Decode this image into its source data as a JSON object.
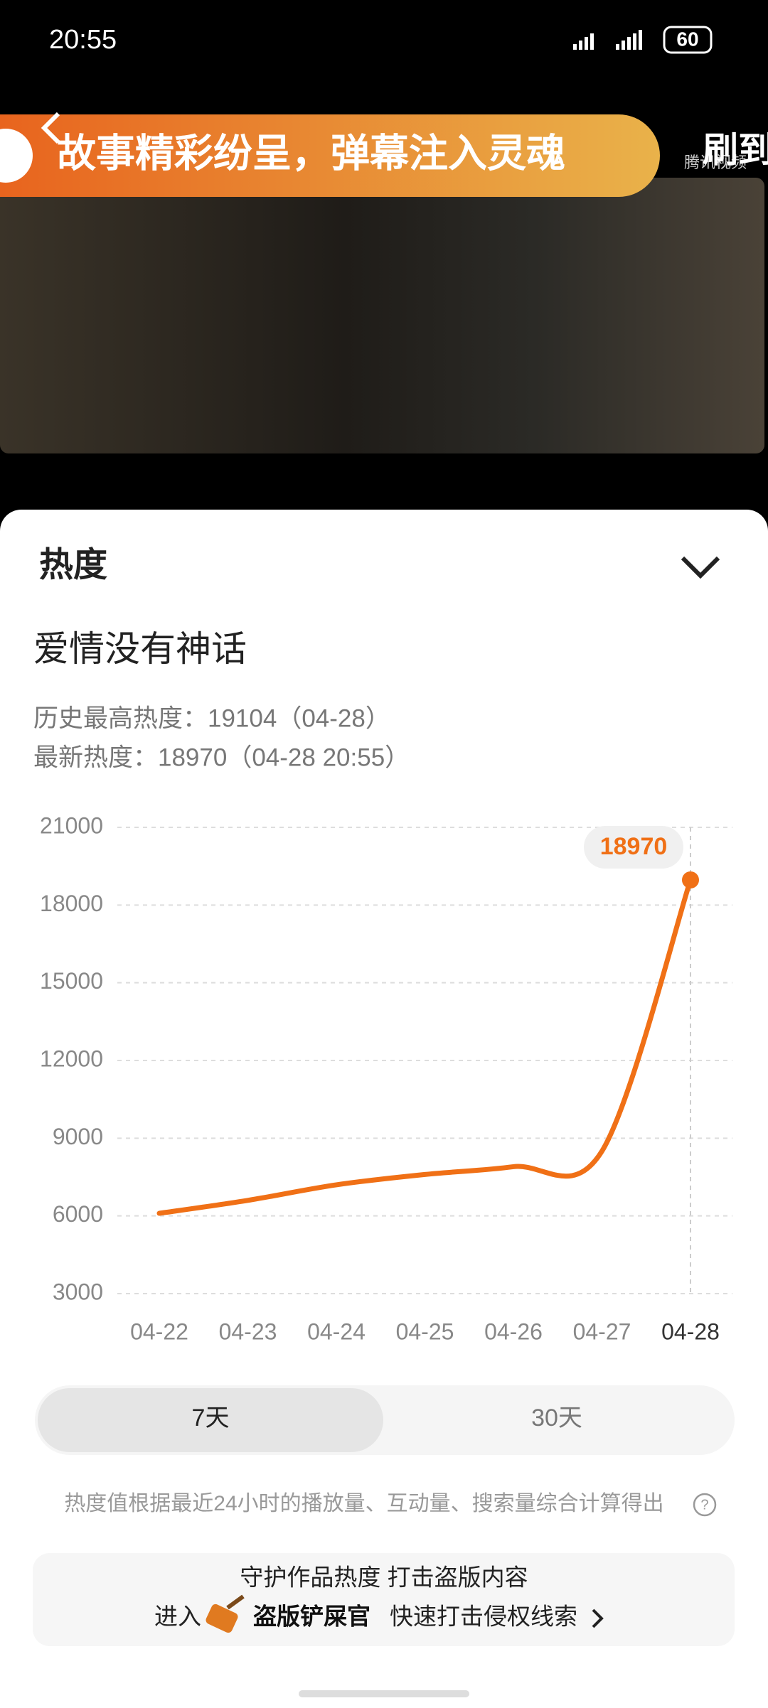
{
  "status_bar": {
    "time": "20:55",
    "battery": "60"
  },
  "video": {
    "banner": "故事精彩纷呈，弹幕注入灵魂",
    "side_text": "刷到",
    "watermark": "腾讯视频"
  },
  "panel": {
    "title": "热度",
    "show_name": "爱情没有神话",
    "history_max": "历史最高热度：19104（04-28）",
    "latest": "最新热度：18970（04-28 20:55）"
  },
  "chart_data": {
    "type": "line",
    "categories": [
      "04-22",
      "04-23",
      "04-24",
      "04-25",
      "04-26",
      "04-27",
      "04-28"
    ],
    "series": [
      {
        "color": "#f07016",
        "values": [
          6100,
          6600,
          7200,
          7600,
          7900,
          8500,
          18970
        ]
      }
    ],
    "ylim": [
      3000,
      21000
    ],
    "yticks": [
      3000,
      6000,
      9000,
      12000,
      15000,
      18000,
      21000
    ],
    "grid": true
  },
  "tabs": [
    "7天",
    "30天"
  ],
  "note": "热度值根据最近24小时的播放量、互动量、搜索量综合计算得出",
  "promo": {
    "line1": "守护作品热度 打击盗版内容",
    "enter": "进入",
    "brand": "盗版铲屎官",
    "action": "快速打击侵权线索"
  }
}
